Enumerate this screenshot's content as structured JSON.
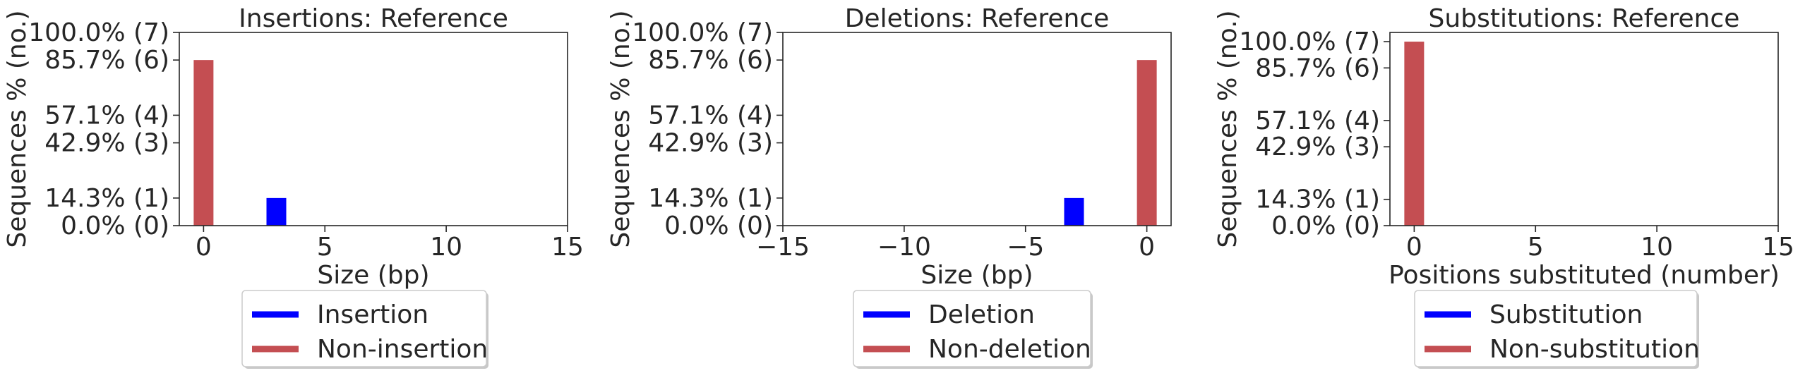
{
  "chart_data": [
    {
      "type": "bar",
      "title": "Insertions: Reference",
      "xlabel": "Size (bp)",
      "ylabel": "Sequences % (no.)",
      "xlim": [
        -1,
        15
      ],
      "xticks": [
        0,
        5,
        10,
        15
      ],
      "xtick_labels": [
        "0",
        "5",
        "10",
        "15"
      ],
      "ylim": [
        0,
        7
      ],
      "yticks": [
        0,
        1,
        3,
        4,
        6,
        7
      ],
      "ytick_labels": [
        "0.0% (0)",
        "14.3% (1)",
        "42.9% (3)",
        "57.1% (4)",
        "85.7% (6)",
        "100.0% (7)"
      ],
      "series": [
        {
          "name": "Insertion",
          "color": "#0000ff",
          "points": [
            {
              "x": 3,
              "y": 1
            }
          ]
        },
        {
          "name": "Non-insertion",
          "color": "#c44e52",
          "points": [
            {
              "x": 0,
              "y": 6
            }
          ]
        }
      ],
      "legend_position": "below"
    },
    {
      "type": "bar",
      "title": "Deletions: Reference",
      "xlabel": "Size (bp)",
      "ylabel": "Sequences % (no.)",
      "xlim": [
        -15,
        1
      ],
      "xticks": [
        -15,
        -10,
        -5,
        0
      ],
      "xtick_labels": [
        "−15",
        "−10",
        "−5",
        "0"
      ],
      "ylim": [
        0,
        7
      ],
      "yticks": [
        0,
        1,
        3,
        4,
        6,
        7
      ],
      "ytick_labels": [
        "0.0% (0)",
        "14.3% (1)",
        "42.9% (3)",
        "57.1% (4)",
        "85.7% (6)",
        "100.0% (7)"
      ],
      "series": [
        {
          "name": "Deletion",
          "color": "#0000ff",
          "points": [
            {
              "x": -3,
              "y": 1
            }
          ]
        },
        {
          "name": "Non-deletion",
          "color": "#c44e52",
          "points": [
            {
              "x": 0,
              "y": 6
            }
          ]
        }
      ],
      "legend_position": "below"
    },
    {
      "type": "bar",
      "title": "Substitutions: Reference",
      "xlabel": "Positions substituted (number)",
      "ylabel": "Sequences % (no.)",
      "xlim": [
        -1,
        15
      ],
      "xticks": [
        0,
        5,
        10,
        15
      ],
      "xtick_labels": [
        "0",
        "5",
        "10",
        "15"
      ],
      "ylim": [
        0,
        7.35
      ],
      "yticks": [
        0,
        1,
        3,
        4,
        6,
        7
      ],
      "ytick_labels": [
        "0.0% (0)",
        "14.3% (1)",
        "42.9% (3)",
        "57.1% (4)",
        "85.7% (6)",
        "100.0% (7)"
      ],
      "series": [
        {
          "name": "Substitution",
          "color": "#0000ff",
          "points": []
        },
        {
          "name": "Non-substitution",
          "color": "#c44e52",
          "points": [
            {
              "x": 0,
              "y": 7
            }
          ]
        }
      ],
      "legend_position": "below"
    }
  ]
}
